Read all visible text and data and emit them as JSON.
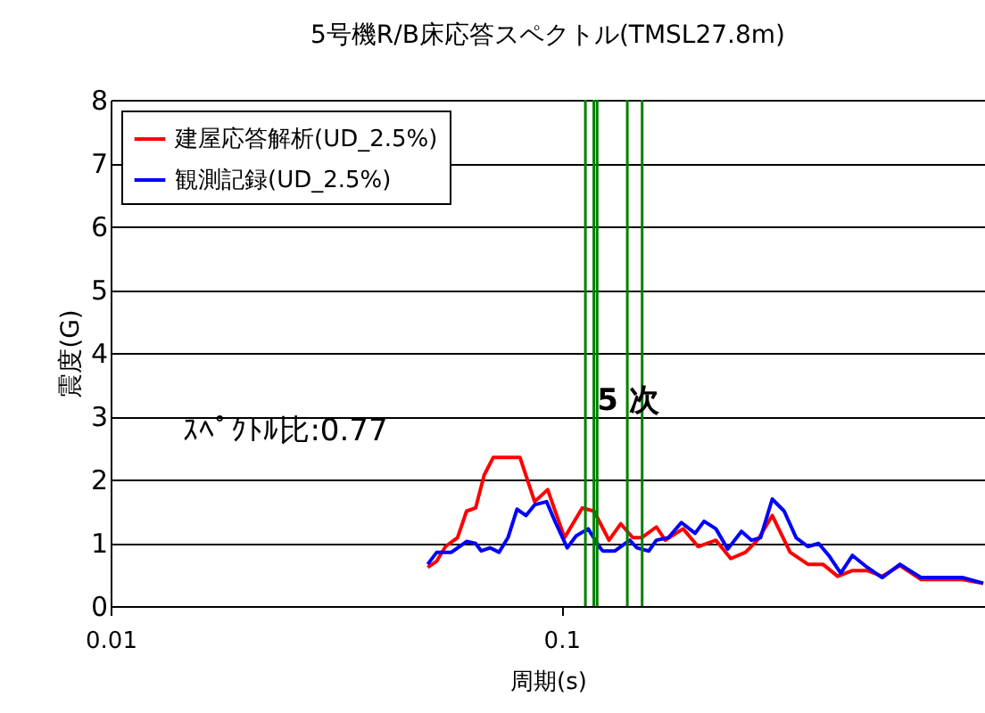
{
  "chart_data": {
    "type": "line",
    "title": "5号機R/B床応答スペクトル(TMSL27.8m)",
    "xlabel": "周期(s)",
    "ylabel": "震度(G)",
    "log": "x",
    "grid": "y",
    "legend": "top left",
    "line_style": "solid",
    "xlim": [
      0.01,
      0.87
    ],
    "xticks": [
      0.01,
      0.1
    ],
    "ylim": [
      0,
      8
    ],
    "yticks": [
      0,
      1,
      2,
      3,
      4,
      5,
      6,
      7,
      8
    ],
    "series": [
      {
        "name": "建屋応答解析(UD_2.5%)",
        "color": "#ff0000",
        "x": [
          0.0505,
          0.0529,
          0.0553,
          0.0588,
          0.0616,
          0.0645,
          0.0674,
          0.0706,
          0.0809,
          0.0872,
          0.0932,
          0.1016,
          0.1112,
          0.1181,
          0.1275,
          0.1354,
          0.1439,
          0.1506,
          0.1624,
          0.17,
          0.1862,
          0.201,
          0.2201,
          0.2375,
          0.2561,
          0.2722,
          0.2935,
          0.3215,
          0.3521,
          0.3801,
          0.41,
          0.4421,
          0.4771,
          0.5146,
          0.5636,
          0.627,
          0.7751,
          0.8622
        ],
        "values": [
          0.61,
          0.71,
          0.94,
          1.08,
          1.5,
          1.55,
          2.07,
          2.35,
          2.35,
          1.65,
          1.84,
          1.08,
          1.55,
          1.5,
          1.04,
          1.3,
          1.08,
          1.08,
          1.25,
          1.04,
          1.22,
          0.94,
          1.04,
          0.75,
          0.85,
          1.04,
          1.43,
          0.85,
          0.66,
          0.66,
          0.47,
          0.56,
          0.56,
          0.47,
          0.64,
          0.42,
          0.42,
          0.36
        ]
      },
      {
        "name": "観測記録(UD_2.5%)",
        "color": "#0000ff",
        "x": [
          0.0505,
          0.0529,
          0.057,
          0.0616,
          0.0645,
          0.0664,
          0.0695,
          0.0727,
          0.0761,
          0.0797,
          0.0834,
          0.0872,
          0.0927,
          0.097,
          0.103,
          0.1078,
          0.1146,
          0.1218,
          0.1236,
          0.1314,
          0.1417,
          0.147,
          0.1562,
          0.1624,
          0.1727,
          0.1845,
          0.1979,
          0.2072,
          0.2201,
          0.2338,
          0.2508,
          0.2641,
          0.2764,
          0.2935,
          0.3119,
          0.3316,
          0.3521,
          0.3719,
          0.3917,
          0.4164,
          0.4421,
          0.4771,
          0.5146,
          0.5636,
          0.627,
          0.7751,
          0.8622
        ],
        "values": [
          0.66,
          0.85,
          0.85,
          1.02,
          0.99,
          0.87,
          0.92,
          0.85,
          1.08,
          1.53,
          1.43,
          1.6,
          1.65,
          1.32,
          0.92,
          1.11,
          1.22,
          0.92,
          0.87,
          0.87,
          1.04,
          0.92,
          0.87,
          1.04,
          1.08,
          1.32,
          1.15,
          1.34,
          1.22,
          0.9,
          1.18,
          1.04,
          1.08,
          1.69,
          1.5,
          1.08,
          0.94,
          0.99,
          0.8,
          0.52,
          0.8,
          0.61,
          0.45,
          0.66,
          0.45,
          0.45,
          0.36
        ]
      }
    ],
    "ref_lines": [
      {
        "axis": "x",
        "value": 0.113,
        "color": "#008000"
      },
      {
        "axis": "x",
        "value": 0.118,
        "color": "#008000"
      },
      {
        "axis": "x",
        "value": 0.12,
        "color": "#008000"
      },
      {
        "axis": "x",
        "value": 0.14,
        "color": "#008000"
      },
      {
        "axis": "x",
        "value": 0.151,
        "color": "#008000"
      }
    ],
    "annotations": [
      "5 次",
      "ｽﾍﾟｸﾄﾙ比:0.77"
    ]
  }
}
